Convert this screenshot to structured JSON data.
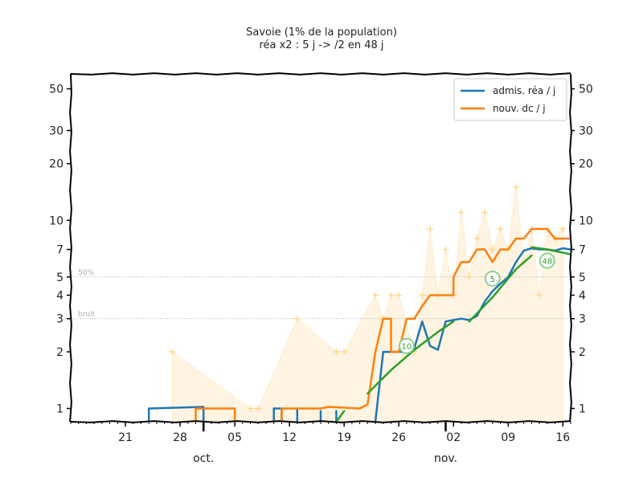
{
  "chart_data": {
    "type": "line",
    "title": "Savoie (1% de la population)",
    "subtitle": "réa x2 : 5 j -> /2 en 48 j",
    "xlabel": "",
    "ylabel": "",
    "y_scale": "log",
    "ylim": [
      0.85,
      60
    ],
    "xlim": [
      "2020-09-14",
      "2020-11-17"
    ],
    "x_ticks": [
      {
        "date": "2020-09-21",
        "label": "21"
      },
      {
        "date": "2020-09-28",
        "label": "28"
      },
      {
        "date": "2020-10-05",
        "label": "05"
      },
      {
        "date": "2020-10-12",
        "label": "12"
      },
      {
        "date": "2020-10-19",
        "label": "19"
      },
      {
        "date": "2020-10-26",
        "label": "26"
      },
      {
        "date": "2020-11-02",
        "label": "02"
      },
      {
        "date": "2020-11-09",
        "label": "09"
      },
      {
        "date": "2020-11-16",
        "label": "16"
      }
    ],
    "month_labels": [
      {
        "date": "2020-10-01",
        "label": "oct."
      },
      {
        "date": "2020-11-01",
        "label": "nov."
      }
    ],
    "y_ticks": [
      {
        "value": 1,
        "label": "1"
      },
      {
        "value": 2,
        "label": "2"
      },
      {
        "value": 3,
        "label": "3"
      },
      {
        "value": 4,
        "label": "4"
      },
      {
        "value": 5,
        "label": "5"
      },
      {
        "value": 7,
        "label": "7"
      },
      {
        "value": 10,
        "label": "10"
      },
      {
        "value": 20,
        "label": "20"
      },
      {
        "value": 30,
        "label": "30"
      },
      {
        "value": 50,
        "label": "50"
      }
    ],
    "reference_lines": [
      {
        "value": 5,
        "label": "50%"
      },
      {
        "value": 3,
        "label": "bruit"
      }
    ],
    "legend_position": "top-right",
    "series": [
      {
        "name": "admis. réa / j",
        "color": "#1f77b4",
        "segments": [
          [
            [
              "2020-09-24",
              0.85
            ],
            [
              "2020-09-24",
              1
            ],
            [
              "2020-10-01",
              1.02
            ],
            [
              "2020-10-01",
              0.85
            ]
          ],
          [
            [
              "2020-10-10",
              0.85
            ],
            [
              "2020-10-10",
              1
            ],
            [
              "2020-10-11",
              1
            ],
            [
              "2020-10-11",
              0.85
            ]
          ],
          [
            [
              "2020-10-13",
              0.85
            ],
            [
              "2020-10-13",
              1
            ],
            [
              "2020-10-13",
              0.85
            ]
          ],
          [
            [
              "2020-10-16",
              0.85
            ],
            [
              "2020-10-16",
              0.97
            ],
            [
              "2020-10-16",
              0.85
            ]
          ],
          [
            [
              "2020-10-18",
              0.85
            ],
            [
              "2020-10-18",
              0.97
            ],
            [
              "2020-10-18",
              0.85
            ]
          ],
          [
            [
              "2020-10-23",
              0.85
            ],
            [
              "2020-10-24",
              2
            ],
            [
              "2020-10-27",
              2
            ],
            [
              "2020-10-28",
              2.1
            ],
            [
              "2020-10-29",
              2.9
            ],
            [
              "2020-10-30",
              2.15
            ],
            [
              "2020-10-31",
              2.05
            ],
            [
              "2020-11-01",
              2.9
            ],
            [
              "2020-11-02",
              2.95
            ],
            [
              "2020-11-03",
              3
            ],
            [
              "2020-11-04",
              2.95
            ],
            [
              "2020-11-05",
              3.1
            ],
            [
              "2020-11-06",
              3.7
            ],
            [
              "2020-11-07",
              4.2
            ],
            [
              "2020-11-08",
              4.6
            ],
            [
              "2020-11-09",
              5
            ],
            [
              "2020-11-10",
              6
            ],
            [
              "2020-11-11",
              6.9
            ],
            [
              "2020-11-12",
              7.1
            ],
            [
              "2020-11-13",
              7
            ],
            [
              "2020-11-14",
              7
            ],
            [
              "2020-11-15",
              6.9
            ],
            [
              "2020-11-16",
              7.1
            ],
            [
              "2020-11-17",
              7
            ]
          ]
        ]
      },
      {
        "name": "nouv. dc / j",
        "color": "#ff7f0e",
        "segments": [
          [
            [
              "2020-09-30",
              0.85
            ],
            [
              "2020-09-30",
              1
            ],
            [
              "2020-10-05",
              1
            ],
            [
              "2020-10-05",
              0.85
            ]
          ],
          [
            [
              "2020-10-11",
              0.85
            ],
            [
              "2020-10-11",
              1
            ],
            [
              "2020-10-16",
              1
            ],
            [
              "2020-10-17",
              1.02
            ],
            [
              "2020-10-21",
              1
            ],
            [
              "2020-10-22",
              1.05
            ],
            [
              "2020-10-23",
              2
            ],
            [
              "2020-10-24",
              3
            ],
            [
              "2020-10-25",
              3
            ],
            [
              "2020-10-25",
              2
            ],
            [
              "2020-10-26",
              2
            ],
            [
              "2020-10-27",
              3
            ],
            [
              "2020-10-28",
              3
            ],
            [
              "2020-10-29",
              3.5
            ],
            [
              "2020-10-30",
              4
            ],
            [
              "2020-11-01",
              4
            ],
            [
              "2020-11-02",
              4
            ],
            [
              "2020-11-02",
              5
            ],
            [
              "2020-11-03",
              6
            ],
            [
              "2020-11-04",
              6
            ],
            [
              "2020-11-05",
              7
            ],
            [
              "2020-11-06",
              7
            ],
            [
              "2020-11-07",
              6
            ],
            [
              "2020-11-08",
              7
            ],
            [
              "2020-11-09",
              7
            ],
            [
              "2020-11-10",
              8
            ],
            [
              "2020-11-11",
              8
            ],
            [
              "2020-11-12",
              9
            ],
            [
              "2020-11-13",
              9
            ],
            [
              "2020-11-14",
              9
            ],
            [
              "2020-11-15",
              8
            ],
            [
              "2020-11-16",
              8
            ],
            [
              "2020-11-17",
              8
            ]
          ]
        ]
      }
    ],
    "trend_lines": [
      {
        "color": "#2ca02c",
        "points": [
          [
            "2020-10-18",
            0.85
          ],
          [
            "2020-10-19",
            0.97
          ]
        ]
      },
      {
        "color": "#2ca02c",
        "points": [
          [
            "2020-10-22",
            1.2
          ],
          [
            "2020-10-25",
            1.6
          ],
          [
            "2020-10-28",
            2.05
          ],
          [
            "2020-10-31",
            2.55
          ],
          [
            "2020-11-02",
            2.9
          ]
        ],
        "badge": "10",
        "badge_at": [
          "2020-10-27",
          2.15
        ]
      },
      {
        "color": "#2ca02c",
        "points": [
          [
            "2020-11-04",
            2.9
          ],
          [
            "2020-11-07",
            3.9
          ],
          [
            "2020-11-10",
            5.5
          ],
          [
            "2020-11-12",
            6.5
          ]
        ],
        "badge": "5",
        "badge_at": [
          "2020-11-07",
          4.9
        ]
      },
      {
        "color": "#2ca02c",
        "points": [
          [
            "2020-11-12",
            7.2
          ],
          [
            "2020-11-14",
            7
          ],
          [
            "2020-11-17",
            6.6
          ]
        ],
        "badge": "48",
        "badge_at": [
          "2020-11-14",
          6.1
        ]
      }
    ],
    "raw_points": {
      "color": "#ffd27f",
      "marker": "+",
      "points": [
        [
          "2020-09-27",
          2
        ],
        [
          "2020-10-07",
          1
        ],
        [
          "2020-10-08",
          1
        ],
        [
          "2020-10-13",
          3
        ],
        [
          "2020-10-18",
          2
        ],
        [
          "2020-10-19",
          2
        ],
        [
          "2020-10-23",
          4
        ],
        [
          "2020-10-24",
          3
        ],
        [
          "2020-10-25",
          4
        ],
        [
          "2020-10-26",
          4
        ],
        [
          "2020-10-28",
          2
        ],
        [
          "2020-10-29",
          4
        ],
        [
          "2020-10-30",
          9
        ],
        [
          "2020-10-31",
          4
        ],
        [
          "2020-11-01",
          7
        ],
        [
          "2020-11-02",
          4
        ],
        [
          "2020-11-03",
          11
        ],
        [
          "2020-11-04",
          5
        ],
        [
          "2020-11-05",
          8
        ],
        [
          "2020-11-06",
          11
        ],
        [
          "2020-11-07",
          7
        ],
        [
          "2020-11-08",
          9
        ],
        [
          "2020-11-09",
          7
        ],
        [
          "2020-11-10",
          15
        ],
        [
          "2020-11-11",
          6
        ],
        [
          "2020-11-12",
          9
        ],
        [
          "2020-11-13",
          4
        ],
        [
          "2020-11-14",
          9
        ],
        [
          "2020-11-15",
          8
        ],
        [
          "2020-11-16",
          9
        ]
      ]
    }
  }
}
